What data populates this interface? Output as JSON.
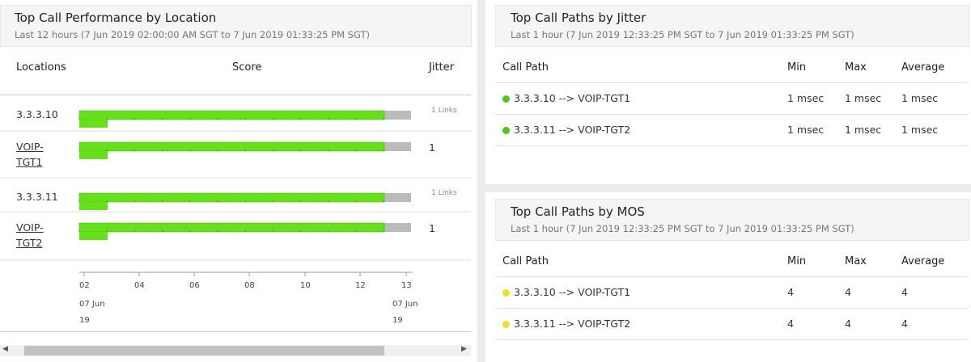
{
  "performance": {
    "title": "Top Call Performance by Location",
    "subtitle": "Last 12 hours (7 Jun 2019 02:00:00 AM SGT to 7 Jun 2019 01:33:25 PM SGT)",
    "columns": [
      "Locations",
      "Score",
      "Jitter"
    ],
    "rows": [
      {
        "location": "3.3.3.10",
        "jitter": "1 Links"
      },
      {
        "location": "VOIP-TGT1",
        "jitter": "1"
      },
      {
        "location": "3.3.3.11",
        "jitter": "1 Links"
      },
      {
        "location": "VOIP-TGT2",
        "jitter": "1"
      }
    ],
    "axis_ticks": [
      "02",
      "04",
      "06",
      "08",
      "10",
      "12",
      "13"
    ],
    "axis_dates": [
      "07 Jun 19",
      "07 Jun 19"
    ]
  },
  "jitter": {
    "title": "Top Call Paths by Jitter",
    "subtitle": "Last 1 hour (7 Jun 2019 12:33:25 PM SGT to 7 Jun 2019 01:33:25 PM SGT)",
    "columns": [
      "Call Path",
      "Min",
      "Max",
      "Average"
    ],
    "rows": [
      [
        "3.3.3.10 --> VOIP-TGT1",
        "1 msec",
        "1 msec",
        "1 msec"
      ],
      [
        "3.3.3.11 --> VOIP-TGT2",
        "1 msec",
        "1 msec",
        "1 msec"
      ]
    ]
  },
  "mos": {
    "title": "Top Call Paths by MOS",
    "subtitle": "Last 1 hour (7 Jun 2019 12:33:25 PM SGT to 7 Jun 2019 01:33:25 PM SGT)",
    "columns": [
      "Call Path",
      "Min",
      "Max",
      "Average"
    ],
    "rows": [
      [
        "3.3.3.10 --> VOIP-TGT1",
        4,
        4,
        4
      ],
      [
        "3.3.3.11 --> VOIP-TGT2",
        4,
        4,
        4
      ]
    ]
  }
}
